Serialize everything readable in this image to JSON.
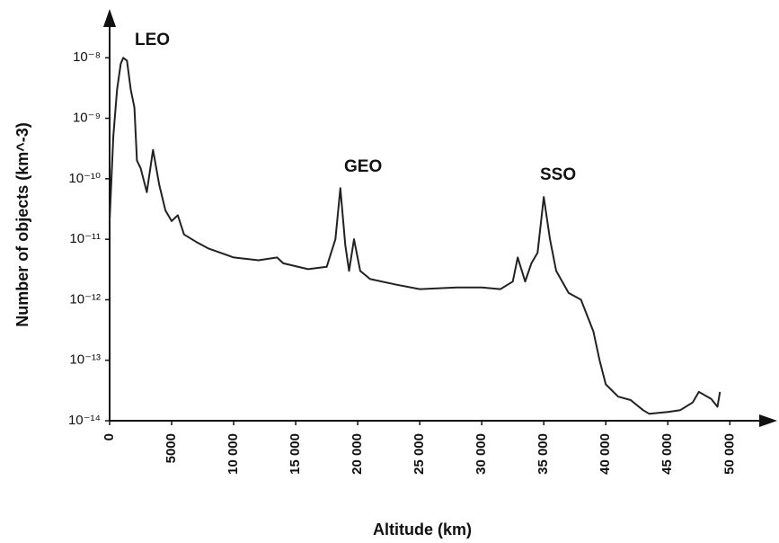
{
  "chart_data": {
    "type": "line",
    "x_label": "Altitude (km)",
    "y_label": "Number of objects (km^-3)",
    "annotations": [
      "LEO",
      "GEO",
      "SSO"
    ],
    "log_y": true,
    "grid": false,
    "xlim": [
      0,
      53600
    ],
    "ylim": [
      1e-14,
      5.4e-08
    ],
    "xticks": [
      0,
      5000,
      {
        "value": 10000,
        "label": "10 000"
      },
      {
        "value": 15000,
        "label": "15 000"
      },
      {
        "value": 20000,
        "label": "20 000"
      },
      {
        "value": 25000,
        "label": "25 000"
      },
      {
        "value": 30000,
        "label": "30 000"
      },
      {
        "value": 35000,
        "label": "35 000"
      },
      {
        "value": 40000,
        "label": "40 000"
      },
      {
        "value": 45000,
        "label": "45 000"
      },
      {
        "value": 50000,
        "label": "50 000"
      }
    ],
    "yticks": [
      {
        "value": 1e-14,
        "label": "10⁻¹⁴"
      },
      {
        "value": 1e-13,
        "label": "10⁻¹³"
      },
      {
        "value": 1e-12,
        "label": "10⁻¹²"
      },
      {
        "value": 1e-11,
        "label": "10⁻¹¹"
      },
      {
        "value": 1e-10,
        "label": "10⁻¹⁰"
      },
      {
        "value": 1e-09,
        "label": "10⁻⁹"
      },
      {
        "value": 1e-08,
        "label": "10⁻⁸"
      }
    ],
    "series": [
      {
        "color": "#222222",
        "x": [
          0,
          300,
          600,
          900,
          1100,
          1400,
          1700,
          2000,
          2200,
          2500,
          3000,
          3500,
          4000,
          4500,
          5000,
          5500,
          6000,
          7000,
          8000,
          10000,
          12000,
          13500,
          14000,
          16000,
          17500,
          18200,
          18600,
          19000,
          19300,
          19700,
          20200,
          21000,
          23000,
          25000,
          28000,
          30000,
          31500,
          32500,
          32900,
          33500,
          34000,
          34500,
          35000,
          35500,
          36000,
          37000,
          38000,
          39000,
          39500,
          40000,
          41000,
          42000,
          43000,
          43500,
          45000,
          46000,
          47000,
          47500,
          48500,
          49000,
          49200
        ],
        "values": [
          2e-11,
          5e-10,
          3e-09,
          8e-09,
          1e-08,
          9e-09,
          3e-09,
          1.5e-09,
          2e-10,
          1.5e-10,
          6e-11,
          3e-10,
          8e-11,
          3e-11,
          2e-11,
          2.5e-11,
          1.2e-11,
          9e-12,
          7e-12,
          5e-12,
          4.5e-12,
          5e-12,
          4e-12,
          3.2e-12,
          3.5e-12,
          1e-11,
          7e-11,
          8e-12,
          3e-12,
          1e-11,
          3e-12,
          2.2e-12,
          1.8e-12,
          1.5e-12,
          1.6e-12,
          1.6e-12,
          1.5e-12,
          2e-12,
          5e-12,
          2e-12,
          4e-12,
          6e-12,
          5e-11,
          1e-11,
          3e-12,
          1.3e-12,
          1e-12,
          3e-13,
          1e-13,
          4e-14,
          2.5e-14,
          2.2e-14,
          1.5e-14,
          1.3e-14,
          1.4e-14,
          1.5e-14,
          2e-14,
          3e-14,
          2.3e-14,
          1.7e-14,
          3e-14
        ]
      }
    ]
  }
}
